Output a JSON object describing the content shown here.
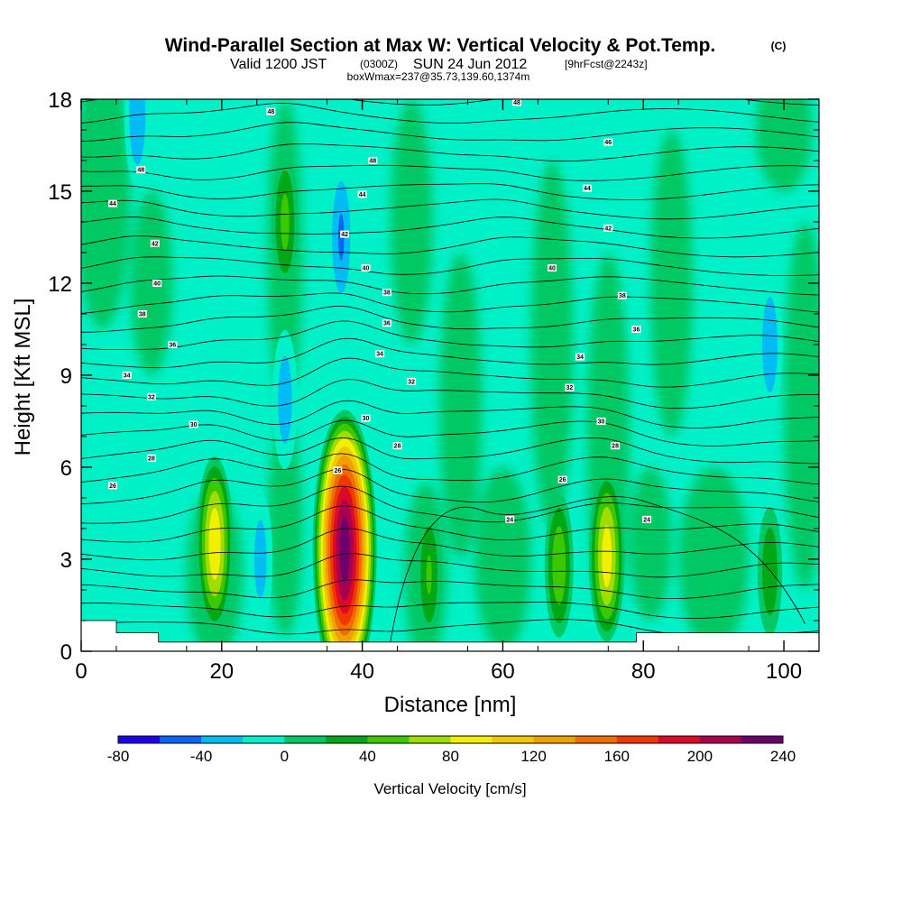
{
  "chart_data": {
    "type": "heatmap",
    "title": {
      "main": "Wind-Parallel Section at Max W: Vertical Velocity & Pot.Temp.",
      "copyright": "(C)",
      "valid_prefix": "Valid 1200 JST",
      "valid_zulu": "(0300Z)",
      "valid_date": "SUN 24 Jun 2012",
      "forecast": "[9hrFcst@2243z]",
      "box": "boxWmax=237@35.73,139.60,1374m"
    },
    "xlabel": "Distance [nm]",
    "ylabel": "Height [Kft MSL]",
    "xlim": [
      0,
      105
    ],
    "ylim": [
      0,
      18
    ],
    "x_ticks": [
      0,
      20,
      40,
      60,
      80,
      100
    ],
    "y_ticks": [
      0,
      3,
      6,
      9,
      12,
      15,
      18
    ],
    "colorbar": {
      "label": "Vertical Velocity [cm/s]",
      "levels": [
        -80,
        -60,
        -40,
        -20,
        0,
        20,
        40,
        60,
        80,
        100,
        120,
        140,
        160,
        180,
        200,
        220,
        240
      ],
      "tick_labels": [
        "-80",
        "-40",
        "0",
        "40",
        "80",
        "120",
        "160",
        "200",
        "240"
      ],
      "colors": [
        "#1e00f0",
        "#0a64f5",
        "#00bcf5",
        "#00f0c8",
        "#00c864",
        "#00a816",
        "#3cc800",
        "#a0dc00",
        "#f0f000",
        "#f0c800",
        "#f0a000",
        "#f06e00",
        "#f03700",
        "#dc0a28",
        "#aa0050",
        "#6e006e"
      ]
    },
    "updrafts": [
      {
        "x": 37.5,
        "z": 3.3,
        "peak": 237
      },
      {
        "x": 19.0,
        "z": 3.5,
        "peak": 100
      },
      {
        "x": 74.8,
        "z": 3.1,
        "peak": 95
      },
      {
        "x": 68.0,
        "z": 2.8,
        "peak": 60
      },
      {
        "x": 49.5,
        "z": 2.5,
        "peak": 45
      },
      {
        "x": 98.0,
        "z": 2.6,
        "peak": 40
      },
      {
        "x": 29.0,
        "z": 14.0,
        "peak": 50
      }
    ],
    "downdrafts": [
      {
        "x": 37.0,
        "z": 13.5,
        "peak": -45
      },
      {
        "x": 8.0,
        "z": 17.5,
        "peak": -40
      },
      {
        "x": 29.0,
        "z": 8.2,
        "peak": -35
      },
      {
        "x": 25.5,
        "z": 3.0,
        "peak": -32
      },
      {
        "x": 98.0,
        "z": 10.0,
        "peak": -38
      }
    ],
    "theta_contour_labels": [
      {
        "x": 27,
        "z": 17.6,
        "text": "48"
      },
      {
        "x": 62,
        "z": 17.9,
        "text": "48"
      },
      {
        "x": 75,
        "z": 16.6,
        "text": "46"
      },
      {
        "x": 8.5,
        "z": 15.7,
        "text": "48"
      },
      {
        "x": 41.5,
        "z": 16.0,
        "text": "48"
      },
      {
        "x": 4.5,
        "z": 14.6,
        "text": "44"
      },
      {
        "x": 40.0,
        "z": 14.9,
        "text": "44"
      },
      {
        "x": 72,
        "z": 15.1,
        "text": "44"
      },
      {
        "x": 37.5,
        "z": 13.6,
        "text": "42"
      },
      {
        "x": 75,
        "z": 13.8,
        "text": "42"
      },
      {
        "x": 10.5,
        "z": 13.3,
        "text": "42"
      },
      {
        "x": 10.8,
        "z": 12.0,
        "text": "40"
      },
      {
        "x": 40.5,
        "z": 12.5,
        "text": "40"
      },
      {
        "x": 67,
        "z": 12.5,
        "text": "40"
      },
      {
        "x": 43.5,
        "z": 11.7,
        "text": "38"
      },
      {
        "x": 77,
        "z": 11.6,
        "text": "38"
      },
      {
        "x": 8.7,
        "z": 11.0,
        "text": "38"
      },
      {
        "x": 43.5,
        "z": 10.7,
        "text": "36"
      },
      {
        "x": 79,
        "z": 10.5,
        "text": "36"
      },
      {
        "x": 13.0,
        "z": 10.0,
        "text": "36"
      },
      {
        "x": 42.5,
        "z": 9.7,
        "text": "34"
      },
      {
        "x": 71,
        "z": 9.6,
        "text": "34"
      },
      {
        "x": 6.5,
        "z": 9.0,
        "text": "34"
      },
      {
        "x": 47,
        "z": 8.8,
        "text": "32"
      },
      {
        "x": 69.5,
        "z": 8.6,
        "text": "32"
      },
      {
        "x": 10.0,
        "z": 8.3,
        "text": "32"
      },
      {
        "x": 40.5,
        "z": 7.6,
        "text": "30"
      },
      {
        "x": 74,
        "z": 7.5,
        "text": "30"
      },
      {
        "x": 16.0,
        "z": 7.4,
        "text": "30"
      },
      {
        "x": 45,
        "z": 6.7,
        "text": "28"
      },
      {
        "x": 76,
        "z": 6.7,
        "text": "28"
      },
      {
        "x": 10.0,
        "z": 6.3,
        "text": "28"
      },
      {
        "x": 36.5,
        "z": 5.9,
        "text": "26"
      },
      {
        "x": 68.5,
        "z": 5.6,
        "text": "26"
      },
      {
        "x": 4.5,
        "z": 5.4,
        "text": "26"
      },
      {
        "x": 61,
        "z": 4.3,
        "text": "24"
      },
      {
        "x": 80.5,
        "z": 4.3,
        "text": "24"
      }
    ]
  }
}
